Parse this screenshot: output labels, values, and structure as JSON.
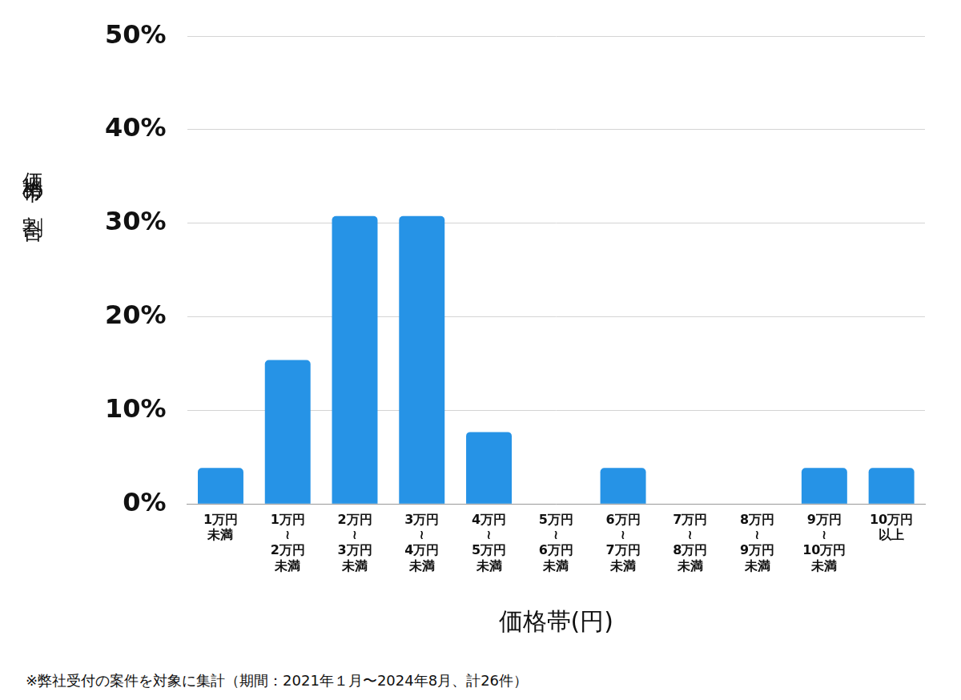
{
  "chart_data": {
    "type": "bar",
    "y_label": "価格帯の割合",
    "x_label": "価格帯(円)",
    "annotations": [
      "※弊社受付の案件を対象に集計（期間：2021年１月〜2024年8月、計26件）"
    ],
    "categories": [
      [
        "1万円",
        "未満"
      ],
      [
        "1万円",
        "≀",
        "2万円",
        "未満"
      ],
      [
        "2万円",
        "≀",
        "3万円",
        "未満"
      ],
      [
        "3万円",
        "≀",
        "4万円",
        "未満"
      ],
      [
        "4万円",
        "≀",
        "5万円",
        "未満"
      ],
      [
        "5万円",
        "≀",
        "6万円",
        "未満"
      ],
      [
        "6万円",
        "≀",
        "7万円",
        "未満"
      ],
      [
        "7万円",
        "≀",
        "8万円",
        "未満"
      ],
      [
        "8万円",
        "≀",
        "9万円",
        "未満"
      ],
      [
        "9万円",
        "≀",
        "10万円",
        "未満"
      ],
      [
        "10万円",
        "以上"
      ]
    ],
    "values": [
      3.85,
      15.38,
      30.77,
      30.77,
      7.69,
      0,
      3.85,
      0,
      0,
      3.85,
      3.85
    ],
    "color": "#2693e6",
    "ylim": [
      0,
      50
    ],
    "yticks": [
      {
        "value": 0,
        "label": "0%"
      },
      {
        "value": 10,
        "label": "10%"
      },
      {
        "value": 20,
        "label": "20%"
      },
      {
        "value": 30,
        "label": "30%"
      },
      {
        "value": 40,
        "label": "40%"
      },
      {
        "value": 50,
        "label": "50%"
      }
    ],
    "grid": true
  }
}
